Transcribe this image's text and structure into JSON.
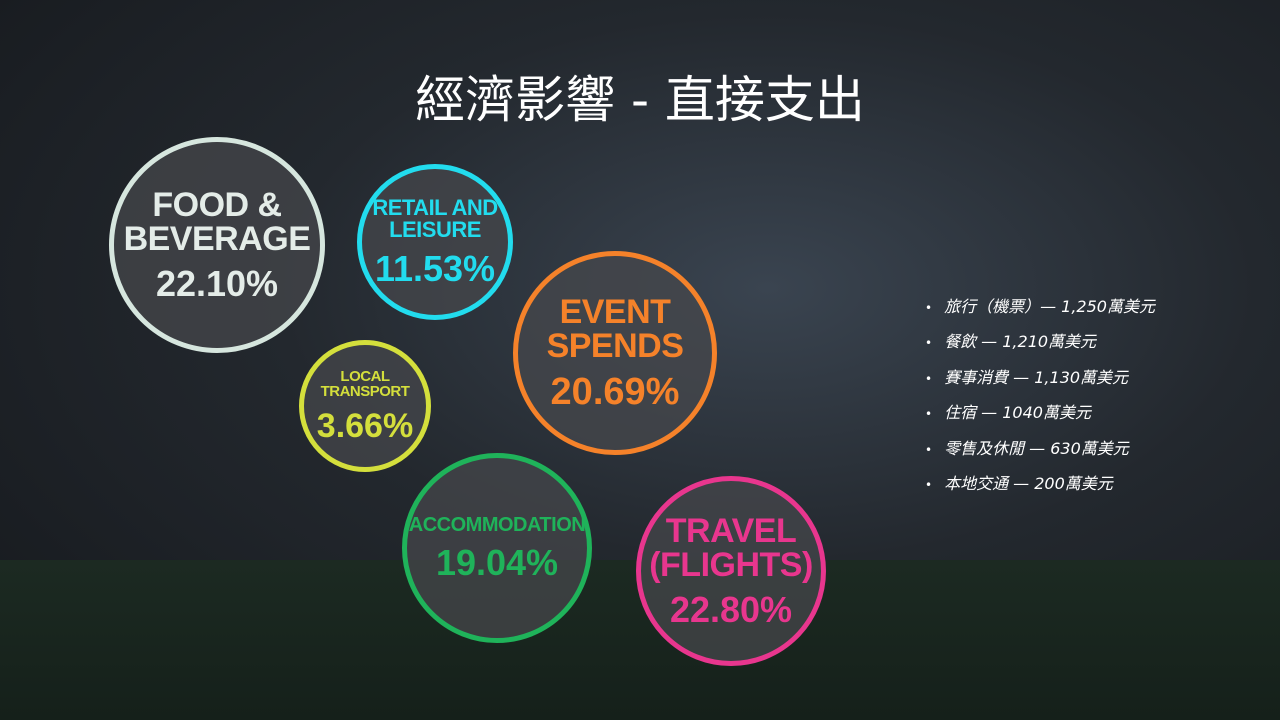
{
  "title": "經濟影響 - 直接支出",
  "bubbles": [
    {
      "lines": [
        "FOOD &",
        "BEVERAGE"
      ],
      "percent": "22.10%"
    },
    {
      "lines": [
        "RETAIL AND",
        "LEISURE"
      ],
      "percent": "11.53%"
    },
    {
      "lines": [
        "EVENT",
        "SPENDS"
      ],
      "percent": "20.69%"
    },
    {
      "lines": [
        "LOCAL",
        "TRANSPORT"
      ],
      "percent": "3.66%"
    },
    {
      "lines": [
        "ACCOMMODATION"
      ],
      "percent": "19.04%"
    },
    {
      "lines": [
        "TRAVEL",
        "(FLIGHTS)"
      ],
      "percent": "22.80%"
    }
  ],
  "bullets": [
    "旅行（機票）— 1,250萬美元",
    "餐飲 — 1,210萬美元",
    "賽事消費 — 1,130萬美元",
    "住宿 — 1040萬美元",
    "零售及休閒 — 630萬美元",
    "本地交通 — 200萬美元"
  ]
}
